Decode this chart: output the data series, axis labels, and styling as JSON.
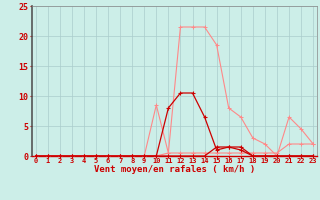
{
  "hours": [
    0,
    1,
    2,
    3,
    4,
    5,
    6,
    7,
    8,
    9,
    10,
    11,
    12,
    13,
    14,
    15,
    16,
    17,
    18,
    19,
    20,
    21,
    22,
    23
  ],
  "rafales": [
    0,
    0,
    0,
    0,
    0,
    0,
    0,
    0,
    0,
    0,
    8.5,
    0.5,
    21.5,
    21.5,
    21.5,
    18.5,
    8,
    6.5,
    3,
    2,
    0,
    6.5,
    4.5,
    2
  ],
  "moyen": [
    0,
    0,
    0,
    0,
    0,
    0,
    0,
    0,
    0,
    0,
    0,
    8.0,
    10.5,
    10.5,
    6.5,
    1.0,
    1.5,
    1.0,
    0,
    0,
    0,
    0,
    0,
    0
  ],
  "line3": [
    0,
    0,
    0,
    0,
    0,
    0,
    0,
    0,
    0,
    0,
    0,
    0.5,
    0.5,
    0.5,
    0.5,
    0.5,
    0.5,
    0.5,
    0.5,
    0.5,
    0.5,
    2.0,
    2.0,
    2.0
  ],
  "line4": [
    0,
    0,
    0,
    0,
    0,
    0,
    0,
    0,
    0,
    0,
    0,
    0,
    0,
    0,
    0,
    1.5,
    1.5,
    1.5,
    0,
    0,
    0,
    0,
    0,
    0
  ],
  "bg_color": "#cceee8",
  "grid_color": "#aacccc",
  "line_color_rafales": "#ff8888",
  "line_color_moyen": "#cc0000",
  "line_color_3": "#ffaaaa",
  "line_color_4": "#cc0000",
  "axis_label_color": "#cc0000",
  "tick_color": "#cc0000",
  "xlabel_text": "Vent moyen/en rafales ( km/h )",
  "ylim": [
    0,
    25
  ],
  "yticks": [
    0,
    5,
    10,
    15,
    20,
    25
  ],
  "figsize": [
    3.2,
    2.0
  ],
  "dpi": 100
}
